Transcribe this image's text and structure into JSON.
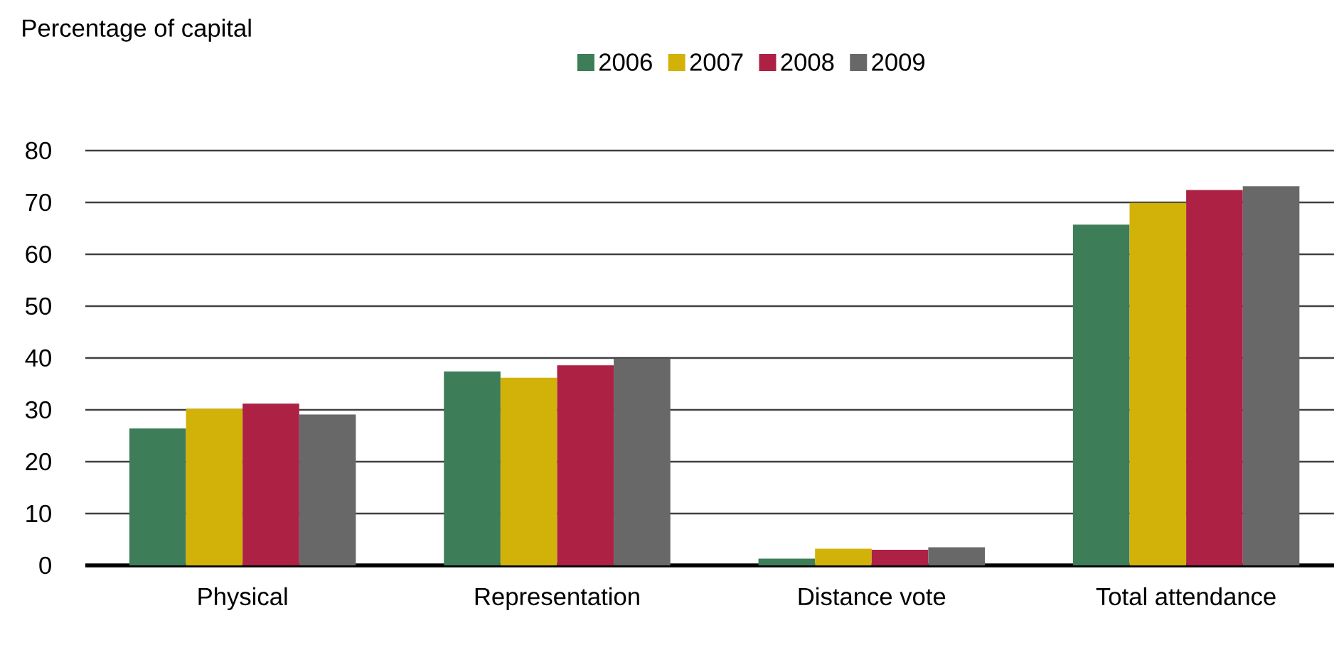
{
  "chart_data": {
    "type": "bar",
    "ylabel": "Percentage of capital",
    "categories": [
      "Physical",
      "Representation",
      "Distance vote",
      "Total attendance"
    ],
    "series": [
      {
        "name": "2006",
        "color": "#3d7d58",
        "values": [
          26.4,
          37.4,
          1.3,
          65.7
        ]
      },
      {
        "name": "2007",
        "color": "#d2b208",
        "values": [
          30.2,
          36.2,
          3.2,
          69.9
        ]
      },
      {
        "name": "2008",
        "color": "#ad2145",
        "values": [
          31.2,
          38.6,
          3.0,
          72.4
        ]
      },
      {
        "name": "2009",
        "color": "#686868",
        "values": [
          29.1,
          39.9,
          3.5,
          73.1
        ]
      }
    ],
    "ylim": [
      0,
      80
    ],
    "yticks": [
      0,
      10,
      20,
      30,
      40,
      50,
      60,
      70,
      80
    ],
    "grid": "y",
    "legend": "top"
  }
}
